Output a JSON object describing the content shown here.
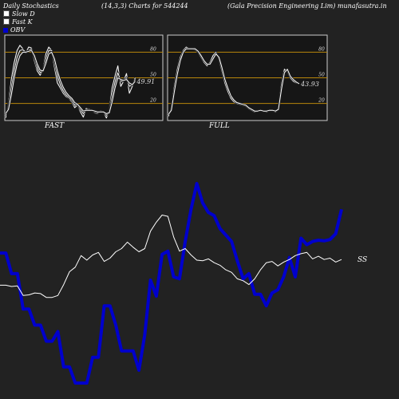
{
  "header": {
    "title": "Daily Stochastics",
    "params_prefix": "(14,3,3) Charts for",
    "symbol": "544244",
    "company": "(Gala  Precision  Engineering Lim) munafasutra.in"
  },
  "legend": {
    "items": [
      {
        "label": "Slow  D",
        "color": "#ffffff"
      },
      {
        "label": "Fast K",
        "color": "#ffffff"
      },
      {
        "label": "OBV",
        "color": "#0000cc"
      }
    ]
  },
  "chart_data": [
    {
      "type": "line",
      "title": "FAST",
      "ylim": [
        0,
        100
      ],
      "yticks": [
        20,
        50,
        80
      ],
      "ytick_labels": [
        "20",
        "50",
        "80"
      ],
      "reference_lines": [
        20,
        50,
        80
      ],
      "last_value_label": "49.91",
      "series": [
        {
          "color": "#ffffff",
          "values": [
            3,
            20,
            48,
            68,
            82,
            88,
            84,
            79,
            86,
            85,
            70,
            58,
            53,
            60,
            78,
            86,
            82,
            62,
            44,
            38,
            32,
            28,
            26,
            22,
            15,
            18,
            10,
            4,
            14,
            13,
            12,
            9,
            8,
            11,
            10,
            3,
            12,
            38,
            52,
            64,
            40,
            46,
            55,
            32,
            40,
            50
          ]
        },
        {
          "color": "#ffffff",
          "values": [
            6,
            16,
            38,
            58,
            74,
            82,
            83,
            80,
            82,
            84,
            74,
            62,
            56,
            58,
            72,
            82,
            82,
            68,
            52,
            42,
            35,
            30,
            27,
            24,
            18,
            18,
            13,
            8,
            12,
            13,
            12,
            10,
            9,
            10,
            10,
            6,
            10,
            28,
            45,
            56,
            46,
            46,
            50,
            40,
            42,
            48
          ]
        },
        {
          "color": "#ffffff",
          "values": [
            8,
            13,
            30,
            50,
            66,
            76,
            80,
            80,
            81,
            82,
            76,
            66,
            59,
            58,
            67,
            78,
            80,
            72,
            58,
            47,
            39,
            33,
            29,
            26,
            21,
            19,
            15,
            11,
            12,
            12,
            12,
            11,
            10,
            10,
            10,
            8,
            9,
            22,
            38,
            50,
            48,
            47,
            48,
            44,
            42,
            46
          ]
        }
      ]
    },
    {
      "type": "line",
      "title": "FULL",
      "ylim": [
        0,
        100
      ],
      "yticks": [
        20,
        50,
        80
      ],
      "ytick_labels": [
        "20",
        "50",
        "80"
      ],
      "reference_lines": [
        20,
        50,
        80
      ],
      "last_value_label": "43.93",
      "series": [
        {
          "color": "#ffffff",
          "values": [
            5,
            14,
            40,
            60,
            74,
            82,
            86,
            84,
            84,
            83,
            80,
            74,
            68,
            64,
            68,
            76,
            80,
            72,
            58,
            44,
            34,
            26,
            22,
            20,
            19,
            18,
            17,
            14,
            12,
            10,
            11,
            12,
            11,
            10,
            12,
            12,
            10,
            14,
            42,
            60,
            58,
            50,
            46,
            44,
            43.93
          ]
        },
        {
          "color": "#ffffff",
          "values": [
            7,
            12,
            34,
            54,
            70,
            80,
            84,
            84,
            84,
            84,
            81,
            76,
            70,
            66,
            66,
            72,
            78,
            74,
            62,
            48,
            38,
            29,
            24,
            21,
            20,
            19,
            18,
            15,
            13,
            11,
            11,
            12,
            11,
            11,
            12,
            12,
            11,
            13,
            36,
            56,
            60,
            52,
            48,
            45,
            43
          ]
        }
      ]
    },
    {
      "type": "line",
      "title": "",
      "series": [
        {
          "name": "OBV",
          "color": "#0000cc",
          "values": [
            52,
            52,
            20,
            20,
            -35,
            -35,
            -60,
            -60,
            -85,
            -85,
            -70,
            -125,
            -125,
            -150,
            -150,
            -150,
            -110,
            -110,
            -30,
            -30,
            -60,
            -100,
            -100,
            -100,
            -130,
            -75,
            10,
            -15,
            50,
            55,
            15,
            12,
            70,
            120,
            160,
            130,
            115,
            110,
            90,
            80,
            70,
            40,
            12,
            20,
            -12,
            -12,
            -30,
            -10,
            -5,
            15,
            45,
            15,
            75,
            65,
            70,
            72,
            71,
            73,
            82,
            120
          ]
        },
        {
          "name": "price",
          "color": "#ffffff",
          "values": [
            2,
            2,
            0,
            1,
            -14,
            -13,
            -10,
            -11,
            -17,
            -17,
            -14,
            3,
            23,
            30,
            48,
            41,
            49,
            53,
            39,
            44,
            54,
            59,
            69,
            61,
            54,
            59,
            86,
            100,
            111,
            109,
            77,
            55,
            59,
            49,
            41,
            40,
            43,
            37,
            33,
            26,
            22,
            12,
            9,
            3,
            12,
            26,
            37,
            39,
            32,
            38,
            42,
            48,
            51,
            53,
            43,
            47,
            42,
            44,
            38,
            42
          ]
        }
      ],
      "end_label": "SS"
    }
  ]
}
